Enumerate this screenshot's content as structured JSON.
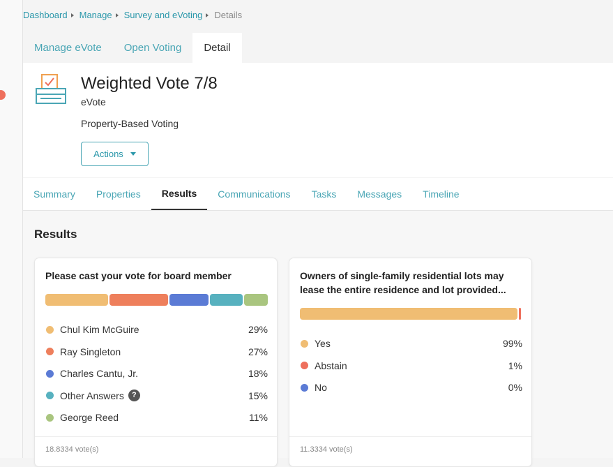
{
  "breadcrumb": [
    "Dashboard",
    "Manage",
    "Survey and eVoting",
    "Details"
  ],
  "top_tabs": {
    "items": [
      "Manage eVote",
      "Open Voting",
      "Detail"
    ],
    "active": 2
  },
  "header": {
    "title": "Weighted Vote 7/8",
    "type": "eVote",
    "category": "Property-Based Voting",
    "action_button": "Actions"
  },
  "sub_tabs": {
    "items": [
      "Summary",
      "Properties",
      "Results",
      "Communications",
      "Tasks",
      "Messages",
      "Timeline"
    ],
    "active": 2
  },
  "results": {
    "heading": "Results",
    "cards": [
      {
        "question": "Please cast your vote for board member",
        "votes": "18.8334 vote(s)",
        "options": [
          {
            "name": "Chul Kim McGuire",
            "color": "#f0bd73",
            "value": 29,
            "label": "29%"
          },
          {
            "name": "Ray Singleton",
            "color": "#ee7f5c",
            "value": 27,
            "label": "27%"
          },
          {
            "name": "Charles Cantu, Jr.",
            "color": "#5b7bd5",
            "value": 18,
            "label": "18%"
          },
          {
            "name": "Other Answers",
            "color": "#57b1bf",
            "value": 15,
            "label": "15%",
            "help_icon": "?"
          },
          {
            "name": "George Reed",
            "color": "#a9c57f",
            "value": 11,
            "label": "11%"
          }
        ]
      },
      {
        "question": "Owners of single-family residential lots may lease the entire residence and lot provided...",
        "votes": "11.3334 vote(s)",
        "options": [
          {
            "name": "Yes",
            "color": "#f0bd73",
            "value": 99,
            "label": "99%"
          },
          {
            "name": "Abstain",
            "color": "#ee6f5c",
            "value": 1,
            "label": "1%"
          },
          {
            "name": "No",
            "color": "#5b7bd5",
            "value": 0,
            "label": "0%"
          }
        ]
      }
    ]
  }
}
